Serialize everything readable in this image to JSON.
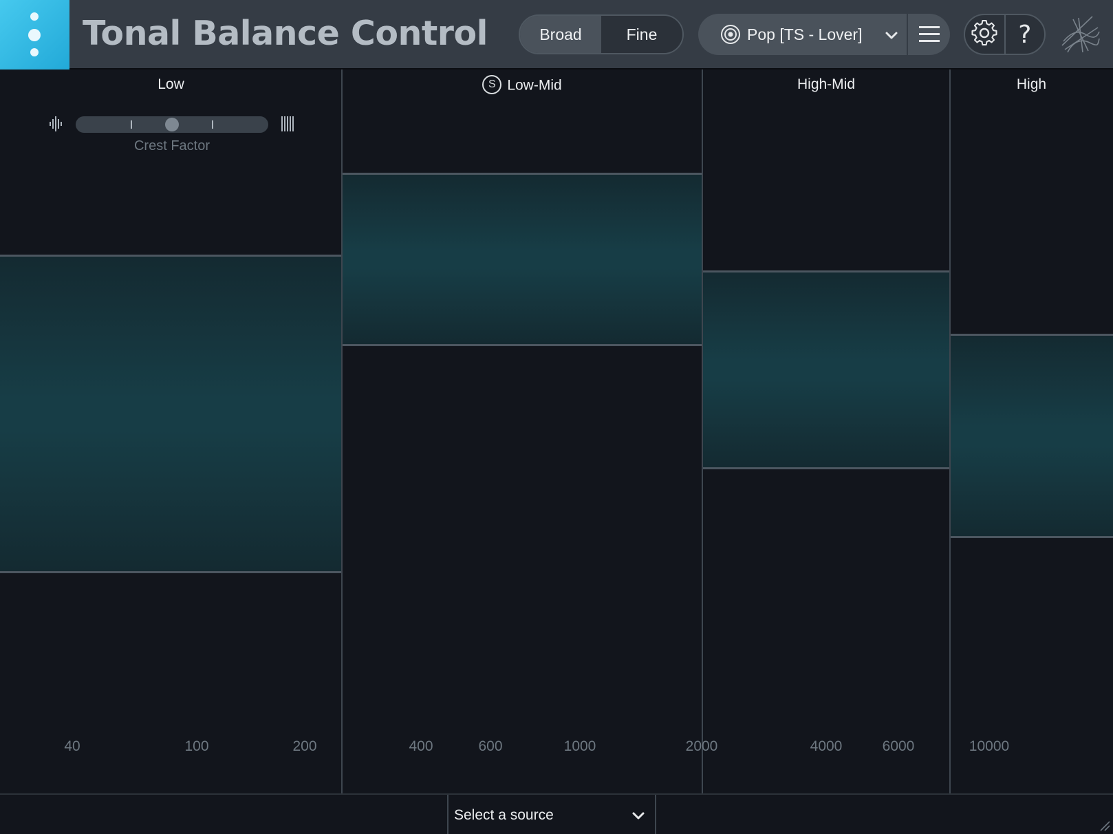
{
  "app": {
    "title": "Tonal Balance Control",
    "accent_color": "#2fb8e4"
  },
  "header": {
    "view_modes": [
      {
        "label": "Broad",
        "active": true
      },
      {
        "label": "Fine",
        "active": false
      }
    ],
    "preset": {
      "label": "Pop [TS - Lover]",
      "icon": "target-icon"
    },
    "menu_icon": "hamburger-menu-icon",
    "settings_icon": "gear-icon",
    "help_label": "?",
    "brand_icon": "izotope-logo-icon"
  },
  "bands": [
    {
      "name": "Low",
      "soloed": false
    },
    {
      "name": "Low-Mid",
      "soloed": true,
      "solo_badge": "S"
    },
    {
      "name": "High-Mid",
      "soloed": false
    },
    {
      "name": "High",
      "soloed": false
    }
  ],
  "crest_factor": {
    "label": "Crest Factor",
    "left_icon": "transient-icon",
    "right_icon": "sustain-icon",
    "position_fraction": 0.5
  },
  "frequency_ticks": [
    "40",
    "100",
    "200",
    "400",
    "600",
    "1000",
    "2000",
    "4000",
    "6000",
    "10000"
  ],
  "footer": {
    "source_placeholder": "Select a source",
    "chevron_icon": "chevron-down-icon",
    "resize_icon": "resize-grip-icon"
  }
}
